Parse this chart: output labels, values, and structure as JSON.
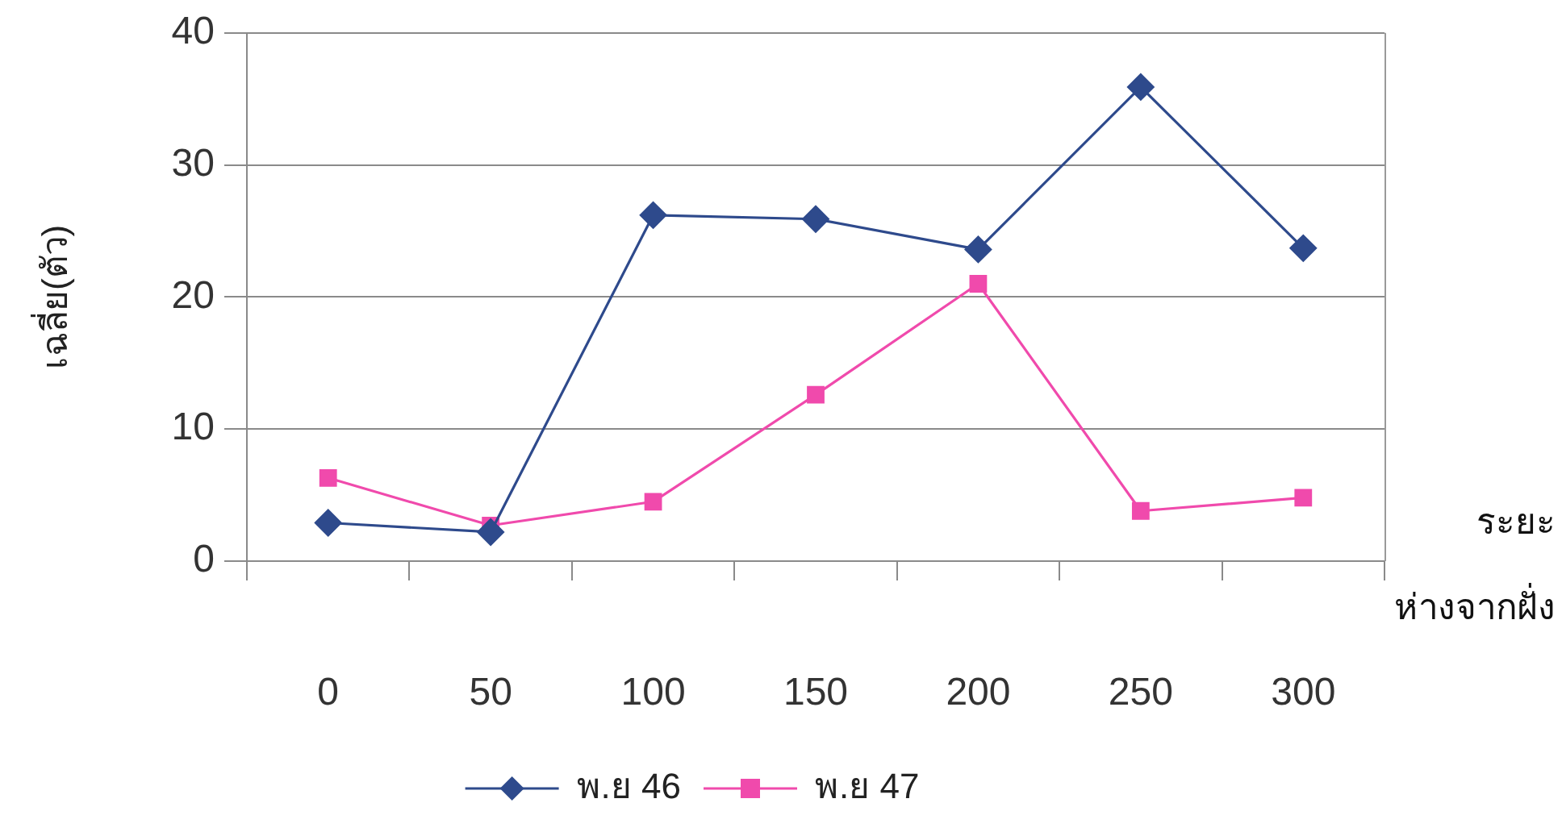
{
  "chart_data": {
    "type": "line",
    "ylabel": "เฉลี่ย(ตัว)",
    "xlabel": "ระยะ ห่างจากฝั่ง",
    "categories": [
      "0",
      "50",
      "100",
      "150",
      "200",
      "250",
      "300"
    ],
    "series": [
      {
        "name": "พ.ย 46",
        "color": "#2e4a8c",
        "marker": "diamond",
        "values": [
          2.9,
          2.2,
          26.2,
          25.9,
          23.6,
          35.9,
          23.7
        ]
      },
      {
        "name": "พ.ย 47",
        "color": "#f04aac",
        "marker": "square",
        "values": [
          6.3,
          2.7,
          4.5,
          12.6,
          21,
          3.8,
          4.8
        ]
      }
    ],
    "ylim": [
      0,
      40
    ],
    "yticks": [
      0,
      10,
      20,
      30,
      40
    ],
    "grid": "y",
    "legend": "bottom",
    "line_style": "solid"
  }
}
